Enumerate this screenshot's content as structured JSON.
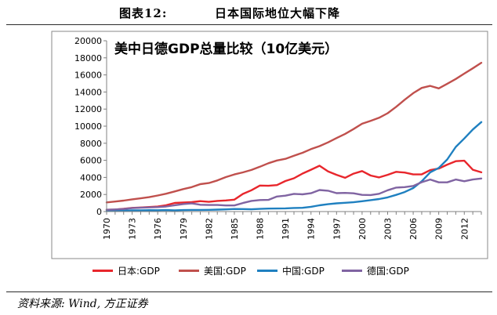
{
  "figure": {
    "number": "图表12:",
    "title": "日本国际地位大幅下降"
  },
  "source": "资料来源: Wind, 方正证券",
  "chart_data": {
    "type": "line",
    "title": "美中日德GDP总量比较（10亿美元）",
    "xlabel": "",
    "ylabel": "",
    "ylim": [
      0,
      20000
    ],
    "xlim": [
      1970,
      2014
    ],
    "y_ticks": [
      0,
      2000,
      4000,
      6000,
      8000,
      10000,
      12000,
      14000,
      16000,
      18000,
      20000
    ],
    "x_tick_labels": [
      "1970",
      "1973",
      "1976",
      "1979",
      "1982",
      "1985",
      "1988",
      "1991",
      "1994",
      "1997",
      "2000",
      "2003",
      "2006",
      "2009",
      "2012"
    ],
    "grid": false,
    "legend": "bottom",
    "x": [
      1970,
      1971,
      1972,
      1973,
      1974,
      1975,
      1976,
      1977,
      1978,
      1979,
      1980,
      1981,
      1982,
      1983,
      1984,
      1985,
      1986,
      1987,
      1988,
      1989,
      1990,
      1991,
      1992,
      1993,
      1994,
      1995,
      1996,
      1997,
      1998,
      1999,
      2000,
      2001,
      2002,
      2003,
      2004,
      2005,
      2006,
      2007,
      2008,
      2009,
      2010,
      2011,
      2012,
      2013,
      2014
    ],
    "series": [
      {
        "name": "日本:GDP",
        "color": "#e8262c",
        "values": [
          210,
          240,
          320,
          430,
          480,
          530,
          590,
          740,
          1010,
          1060,
          1100,
          1220,
          1140,
          1250,
          1300,
          1390,
          2060,
          2500,
          3050,
          3020,
          3100,
          3580,
          3900,
          4450,
          4900,
          5370,
          4700,
          4300,
          3950,
          4440,
          4740,
          4220,
          4000,
          4300,
          4650,
          4570,
          4350,
          4360,
          4850,
          5040,
          5500,
          5900,
          5950,
          4900,
          4600
        ]
      },
      {
        "name": "美国:GDP",
        "color": "#c0504d",
        "values": [
          1070,
          1170,
          1280,
          1430,
          1550,
          1690,
          1880,
          2090,
          2360,
          2630,
          2860,
          3210,
          3340,
          3640,
          4040,
          4350,
          4590,
          4870,
          5250,
          5660,
          5980,
          6170,
          6540,
          6880,
          7310,
          7660,
          8100,
          8610,
          9090,
          9660,
          10280,
          10620,
          10980,
          11510,
          12270,
          13090,
          13860,
          14480,
          14720,
          14420,
          14960,
          15520,
          16160,
          16770,
          17420
        ]
      },
      {
        "name": "中国:GDP",
        "color": "#1f80c0",
        "values": [
          92,
          100,
          114,
          139,
          144,
          163,
          154,
          175,
          150,
          178,
          191,
          196,
          203,
          228,
          257,
          306,
          297,
          270,
          312,
          346,
          357,
          379,
          423,
          441,
          564,
          734,
          863,
          962,
          1029,
          1094,
          1211,
          1339,
          1471,
          1660,
          1955,
          2286,
          2752,
          3552,
          4598,
          5110,
          6101,
          7573,
          8560,
          9607,
          10480
        ]
      },
      {
        "name": "德国:GDP",
        "color": "#8064a2",
        "values": [
          210,
          250,
          300,
          400,
          450,
          490,
          520,
          600,
          740,
          880,
          950,
          800,
          770,
          770,
          720,
          720,
          1000,
          1250,
          1350,
          1370,
          1760,
          1860,
          2070,
          2020,
          2150,
          2520,
          2440,
          2160,
          2180,
          2140,
          1950,
          1940,
          2080,
          2500,
          2810,
          2860,
          3000,
          3440,
          3750,
          3420,
          3420,
          3750,
          3550,
          3750,
          3870
        ]
      }
    ]
  }
}
